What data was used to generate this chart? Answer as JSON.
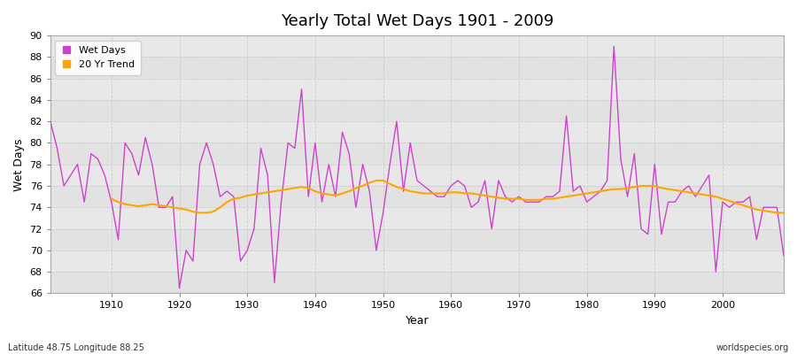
{
  "title": "Yearly Total Wet Days 1901 - 2009",
  "xlabel": "Year",
  "ylabel": "Wet Days",
  "lat_lon_label": "Latitude 48.75 Longitude 88.25",
  "watermark": "worldspecies.org",
  "ylim": [
    66,
    90
  ],
  "xlim": [
    1901,
    2009
  ],
  "yticks": [
    66,
    68,
    70,
    72,
    74,
    76,
    78,
    80,
    82,
    84,
    86,
    88,
    90
  ],
  "xticks": [
    1910,
    1920,
    1930,
    1940,
    1950,
    1960,
    1970,
    1980,
    1990,
    2000
  ],
  "wet_days_color": "#CC44CC",
  "trend_color": "#FFA500",
  "fig_bg_color": "#FFFFFF",
  "plot_bg_color": "#E8E8E8",
  "legend_entries": [
    "Wet Days",
    "20 Yr Trend"
  ],
  "years": [
    1901,
    1902,
    1903,
    1904,
    1905,
    1906,
    1907,
    1908,
    1909,
    1910,
    1911,
    1912,
    1913,
    1914,
    1915,
    1916,
    1917,
    1918,
    1919,
    1920,
    1921,
    1922,
    1923,
    1924,
    1925,
    1926,
    1927,
    1928,
    1929,
    1930,
    1931,
    1932,
    1933,
    1934,
    1935,
    1936,
    1937,
    1938,
    1939,
    1940,
    1941,
    1942,
    1943,
    1944,
    1945,
    1946,
    1947,
    1948,
    1949,
    1950,
    1951,
    1952,
    1953,
    1954,
    1955,
    1956,
    1957,
    1958,
    1959,
    1960,
    1961,
    1962,
    1963,
    1964,
    1965,
    1966,
    1967,
    1968,
    1969,
    1970,
    1971,
    1972,
    1973,
    1974,
    1975,
    1976,
    1977,
    1978,
    1979,
    1980,
    1981,
    1982,
    1983,
    1984,
    1985,
    1986,
    1987,
    1988,
    1989,
    1990,
    1991,
    1992,
    1993,
    1994,
    1995,
    1996,
    1997,
    1998,
    1999,
    2000,
    2001,
    2002,
    2003,
    2004,
    2005,
    2006,
    2007,
    2008,
    2009
  ],
  "wet_days": [
    82,
    79.5,
    76,
    77,
    78,
    74.5,
    79,
    78.5,
    77,
    74.5,
    71,
    80,
    79,
    77,
    80.5,
    78,
    74,
    74,
    75,
    66.5,
    70,
    69,
    78,
    80,
    78,
    75,
    75.5,
    75,
    69,
    70,
    72,
    79.5,
    77,
    67,
    74.5,
    80,
    79.5,
    85,
    75,
    80,
    74.5,
    78,
    75,
    81,
    79,
    74,
    78,
    75.5,
    70,
    73.5,
    78,
    82,
    75.5,
    80,
    76.5,
    76,
    75.5,
    75,
    75,
    76,
    76.5,
    76,
    74,
    74.5,
    76.5,
    72,
    76.5,
    75,
    74.5,
    75,
    74.5,
    74.5,
    74.5,
    75,
    75,
    75.5,
    82.5,
    75.5,
    76,
    74.5,
    75,
    75.5,
    76.5,
    89,
    78.5,
    75,
    79,
    72,
    71.5,
    78,
    71.5,
    74.5,
    74.5,
    75.5,
    76,
    75,
    76,
    77,
    68,
    74.5,
    74,
    74.5,
    74.5,
    75,
    71,
    74,
    74,
    74,
    69.5
  ],
  "trend_years": [
    1910,
    1911,
    1912,
    1913,
    1914,
    1915,
    1916,
    1917,
    1918,
    1919,
    1920,
    1921,
    1922,
    1923,
    1924,
    1925,
    1926,
    1927,
    1928,
    1929,
    1930,
    1931,
    1932,
    1933,
    1934,
    1935,
    1936,
    1937,
    1938,
    1939,
    1940,
    1941,
    1942,
    1943,
    1944,
    1945,
    1946,
    1947,
    1948,
    1949,
    1950,
    1951,
    1952,
    1953,
    1954,
    1955,
    1956,
    1957,
    1958,
    1959,
    1960,
    1961,
    1962,
    1963,
    1964,
    1965,
    1966,
    1967,
    1968,
    1969,
    1970,
    1971,
    1972,
    1973,
    1974,
    1975,
    1976,
    1977,
    1978,
    1979,
    1980,
    1981,
    1982,
    1983,
    1984,
    1985,
    1986,
    1987,
    1988,
    1989,
    1990,
    1991,
    1992,
    1993,
    1994,
    1995,
    1996,
    1997,
    1998,
    1999,
    2000,
    2001,
    2002,
    2003,
    2004,
    2005,
    2006,
    2007,
    2008,
    2009
  ],
  "trend_vals": [
    74.8,
    74.5,
    74.3,
    74.2,
    74.1,
    74.2,
    74.3,
    74.2,
    74.1,
    74.0,
    73.9,
    73.8,
    73.6,
    73.5,
    73.5,
    73.6,
    74.0,
    74.5,
    74.8,
    74.9,
    75.1,
    75.2,
    75.3,
    75.4,
    75.5,
    75.6,
    75.7,
    75.8,
    75.9,
    75.8,
    75.5,
    75.3,
    75.2,
    75.1,
    75.3,
    75.5,
    75.8,
    76.0,
    76.3,
    76.5,
    76.5,
    76.2,
    75.9,
    75.7,
    75.5,
    75.4,
    75.3,
    75.3,
    75.3,
    75.3,
    75.4,
    75.4,
    75.3,
    75.3,
    75.2,
    75.1,
    75.0,
    74.9,
    74.8,
    74.8,
    74.8,
    74.7,
    74.7,
    74.7,
    74.8,
    74.8,
    74.9,
    75.0,
    75.1,
    75.2,
    75.3,
    75.4,
    75.5,
    75.6,
    75.7,
    75.7,
    75.8,
    75.9,
    76.0,
    76.0,
    76.0,
    75.8,
    75.7,
    75.6,
    75.5,
    75.4,
    75.3,
    75.2,
    75.1,
    75.0,
    74.8,
    74.6,
    74.4,
    74.2,
    74.0,
    73.8,
    73.7,
    73.6,
    73.5,
    73.5
  ]
}
